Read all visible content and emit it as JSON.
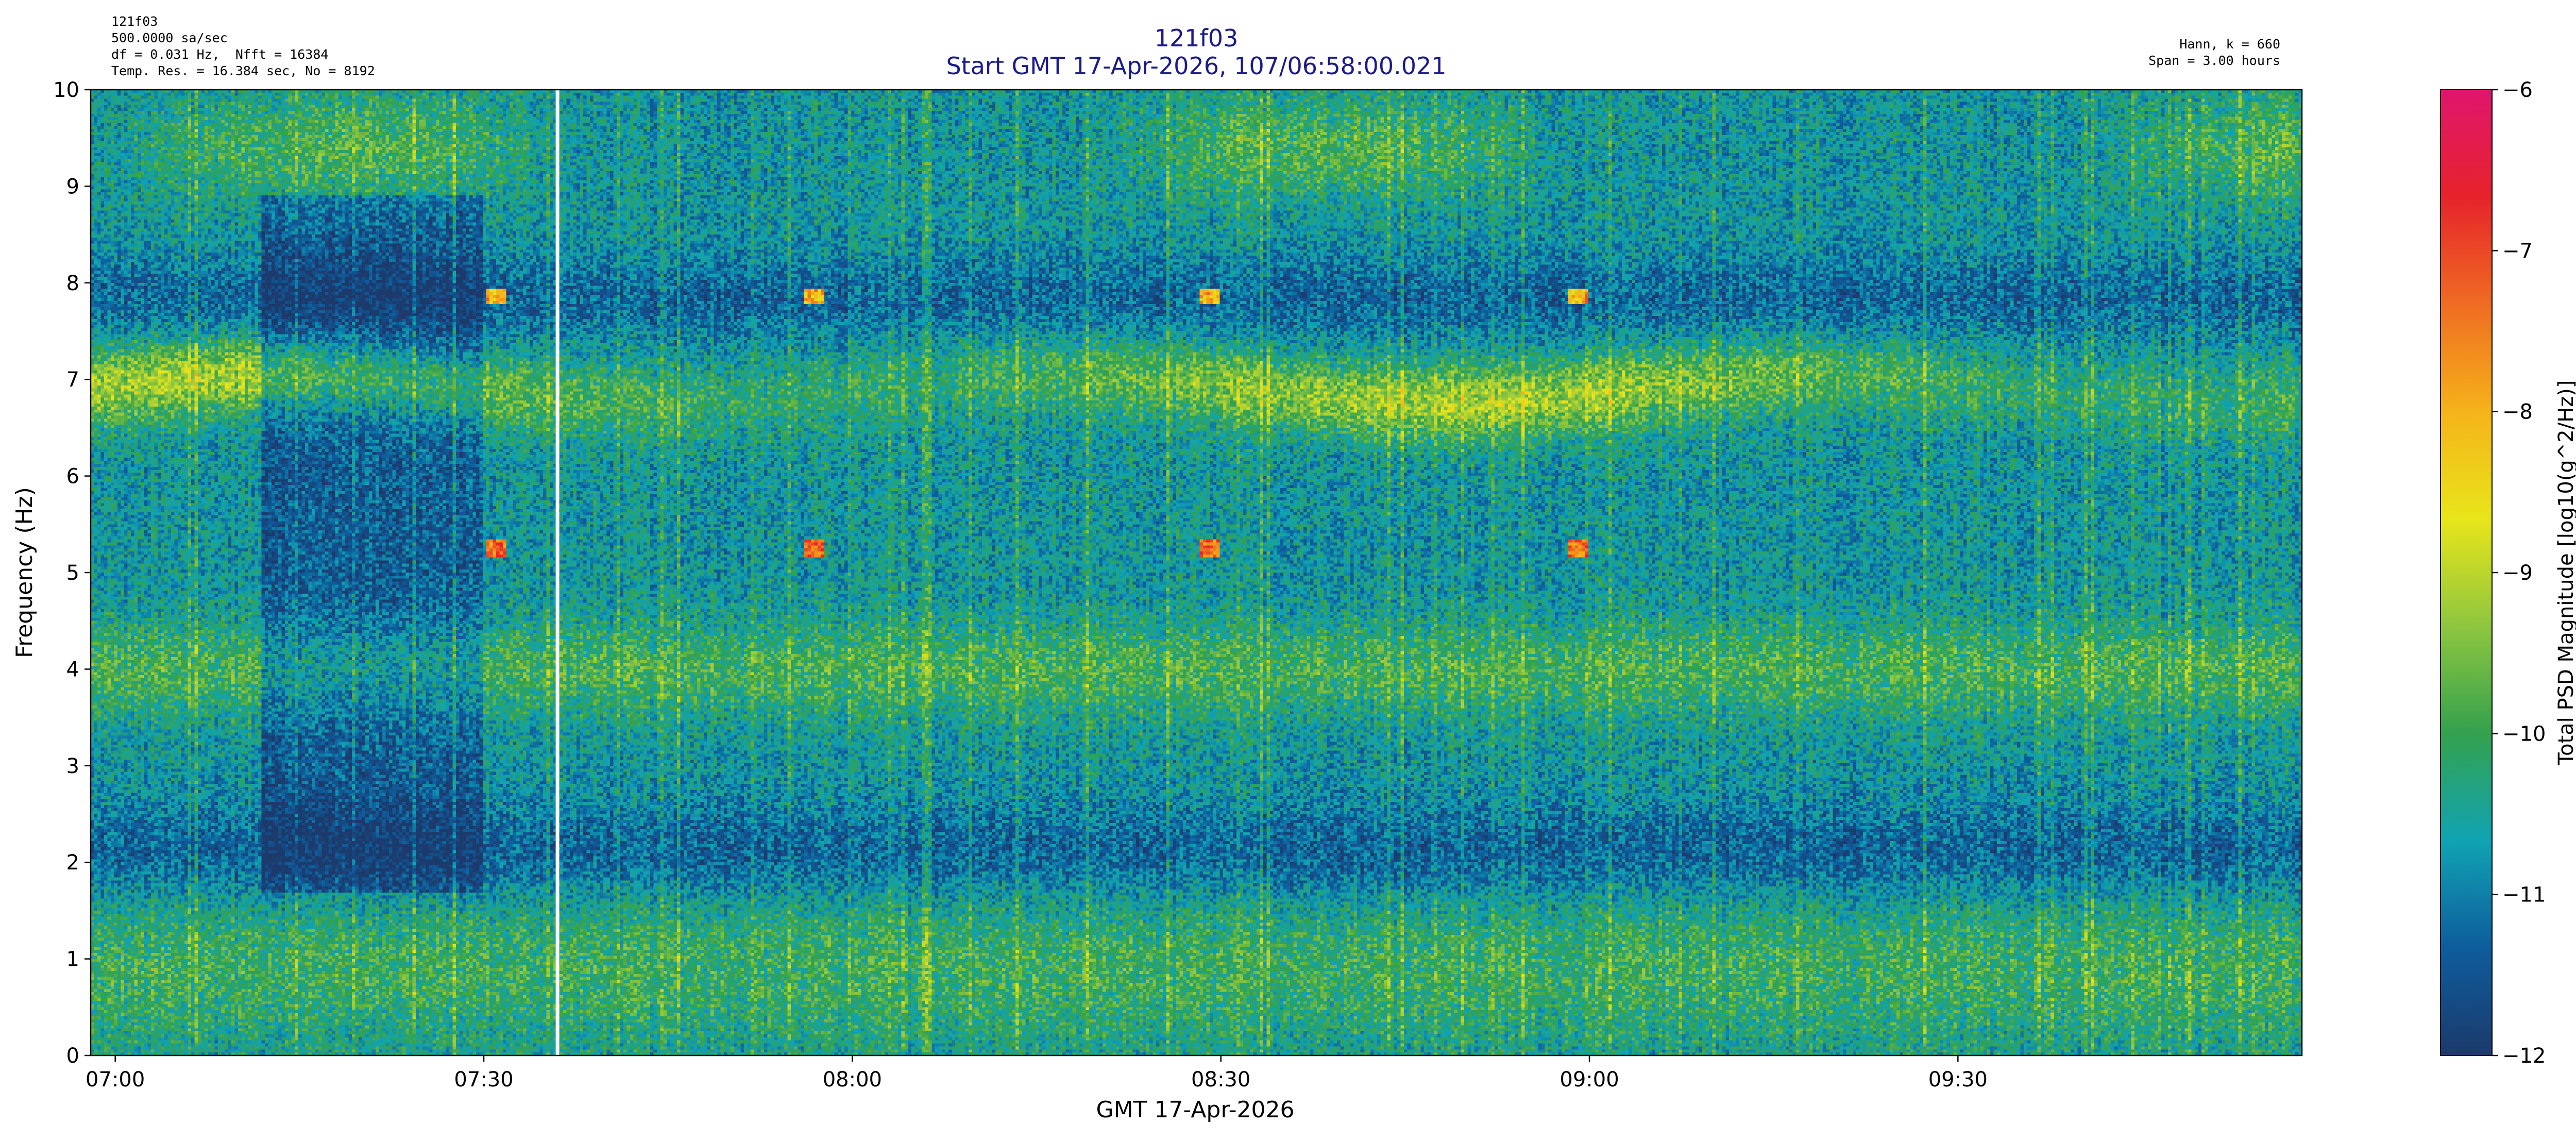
{
  "header": {
    "info_left": [
      "121f03",
      "500.0000 sa/sec",
      "df = 0.031 Hz,  Nfft = 16384",
      "Temp. Res. = 16.384 sec, No = 8192"
    ],
    "info_right": [
      "Hann, k = 660",
      "Span = 3.00 hours"
    ],
    "title": "121f03",
    "subtitle": "Start GMT 17-Apr-2026, 107/06:58:00.021"
  },
  "chart_data": {
    "type": "heatmap",
    "title": "121f03",
    "subtitle": "Start GMT 17-Apr-2026, 107/06:58:00.021",
    "xlabel": "GMT 17-Apr-2026",
    "ylabel": "Frequency (Hz)",
    "x_start": "06:58:00",
    "x_end": "09:58:00",
    "xticks": [
      "07:00",
      "07:30",
      "08:00",
      "08:30",
      "09:00",
      "09:30"
    ],
    "xtick_times": [
      "07:00",
      "07:30",
      "08:00",
      "08:30",
      "09:00",
      "09:30"
    ],
    "ylim": [
      0,
      10
    ],
    "yticks": [
      0,
      1,
      2,
      3,
      4,
      5,
      6,
      7,
      8,
      9,
      10
    ],
    "colorbar": {
      "label": "Total PSD Magnitude [log10(g^2/Hz)]",
      "range": [
        -12,
        -6
      ],
      "ticks": [
        -12,
        -11,
        -10,
        -9,
        -8,
        -7,
        -6
      ],
      "colors": [
        "#1c3a6b",
        "#0e5c9c",
        "#10a3b3",
        "#33a14e",
        "#8ec63f",
        "#e8e51a",
        "#f5b31a",
        "#ef6c22",
        "#e6232b",
        "#e0156e"
      ]
    },
    "features": [
      {
        "label": "broad band ~6.9 Hz",
        "freq_hz": 6.9,
        "level": -9.2
      },
      {
        "label": "band ~4.0 Hz",
        "freq_hz": 4.0,
        "level": -9.6
      },
      {
        "label": "tone 5.25 Hz",
        "freq_hz": 5.25,
        "level": -7.5
      },
      {
        "label": "tone 7.85 Hz",
        "freq_hz": 7.85,
        "level": -8.2
      },
      {
        "label": "low-frequency energy 0–1.5 Hz",
        "freq_hz": 0.8,
        "level": -9.5
      },
      {
        "label": "quiet region 1.7–2.5 Hz",
        "freq_hz": 2.0,
        "level": -11.4
      }
    ],
    "gap_time": "07:36",
    "grid": false
  }
}
